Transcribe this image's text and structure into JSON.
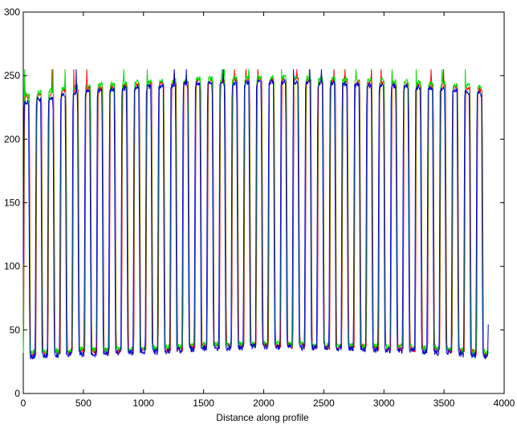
{
  "chart_data": {
    "type": "line",
    "title": "",
    "xlabel": "Distance along profile",
    "ylabel": "",
    "xlim": [
      0,
      4000
    ],
    "ylim": [
      0,
      300
    ],
    "xticks": [
      0,
      500,
      1000,
      1500,
      2000,
      2500,
      3000,
      3500,
      4000
    ],
    "yticks": [
      0,
      50,
      100,
      150,
      200,
      250,
      300
    ],
    "grid": false,
    "legend": "none",
    "x_extent": [
      0,
      3870
    ],
    "period_count": 38,
    "series": [
      {
        "color": "#ff0000",
        "high_points": {
          "x": [
            0,
            500,
            1000,
            1500,
            2000,
            2500,
            3000,
            3500,
            3860
          ],
          "y": [
            233,
            240,
            243,
            246,
            247,
            246,
            244,
            242,
            238
          ]
        },
        "low_points": {
          "x": [
            0,
            500,
            1000,
            1500,
            2000,
            2500,
            3000,
            3500,
            3860
          ],
          "y": [
            31,
            33,
            34,
            37,
            38,
            37,
            36,
            34,
            31
          ]
        }
      },
      {
        "color": "#00dd00",
        "high_points": {
          "x": [
            0,
            500,
            1000,
            1500,
            2000,
            2500,
            3000,
            3500,
            3860
          ],
          "y": [
            235,
            242,
            245,
            248,
            249,
            248,
            246,
            244,
            240
          ]
        },
        "low_points": {
          "x": [
            0,
            500,
            1000,
            1500,
            2000,
            2500,
            3000,
            3500,
            3860
          ],
          "y": [
            32,
            34,
            35,
            38,
            39,
            38,
            37,
            35,
            32
          ]
        }
      },
      {
        "color": "#0000cc",
        "high_points": {
          "x": [
            0,
            500,
            1000,
            1500,
            2000,
            2500,
            3000,
            3500,
            3860
          ],
          "y": [
            229,
            237,
            241,
            244,
            245,
            244,
            242,
            240,
            235
          ]
        },
        "low_points": {
          "x": [
            0,
            500,
            1000,
            1500,
            2000,
            2500,
            3000,
            3500,
            3860
          ],
          "y": [
            28,
            31,
            32,
            35,
            37,
            36,
            34,
            32,
            29
          ]
        }
      }
    ]
  }
}
